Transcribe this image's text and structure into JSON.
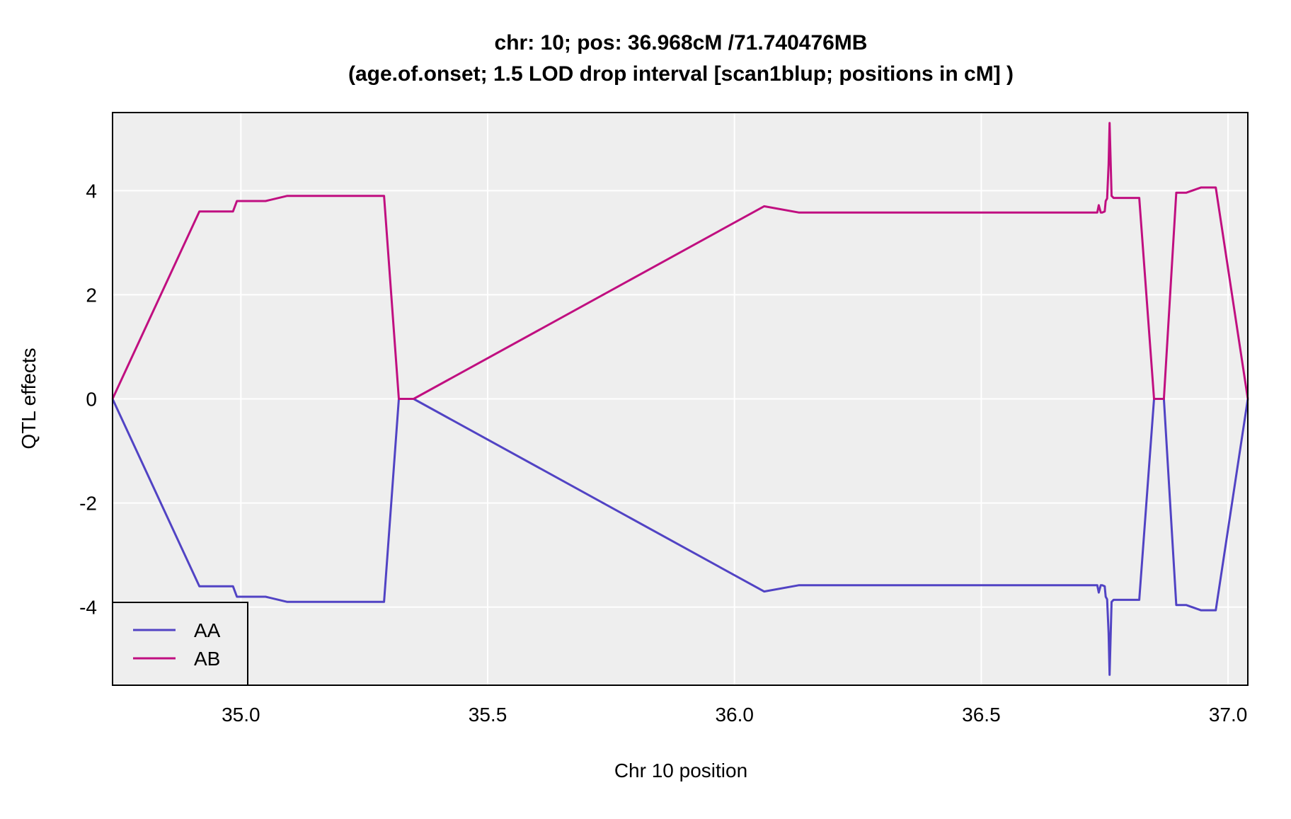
{
  "chart_data": {
    "type": "line",
    "title": "chr: 10; pos: 36.968cM /71.740476MB",
    "subtitle": "(age.of.onset; 1.5 LOD drop interval [scan1blup; positions in cM] )",
    "xlabel": "Chr 10 position",
    "ylabel": "QTL effects",
    "xlim": [
      34.74,
      37.04
    ],
    "ylim": [
      -5.5,
      5.5
    ],
    "x_ticks": [
      "35.0",
      "35.5",
      "36.0",
      "36.5",
      "37.0"
    ],
    "y_ticks": [
      "-4",
      "-2",
      "0",
      "2",
      "4"
    ],
    "grid": true,
    "legend_position": "bottom-left",
    "series": [
      {
        "name": "AA",
        "color": "#5143c4",
        "x": [
          34.74,
          34.916,
          34.984,
          34.992,
          35.05,
          35.094,
          35.29,
          35.32,
          35.35,
          36.06,
          36.13,
          36.735,
          36.738,
          36.742,
          36.745,
          36.75,
          36.752,
          36.755,
          36.758,
          36.76,
          36.764,
          36.768,
          36.774,
          36.82,
          36.85,
          36.87,
          36.895,
          36.915,
          36.945,
          36.975,
          37.04
        ],
        "y": [
          0,
          -3.6,
          -3.6,
          -3.8,
          -3.8,
          -3.9,
          -3.9,
          0,
          0,
          -3.7,
          -3.58,
          -3.58,
          -3.72,
          -3.58,
          -3.58,
          -3.6,
          -3.8,
          -3.85,
          -4.5,
          -5.3,
          -3.9,
          -3.86,
          -3.86,
          -3.86,
          0,
          0,
          -3.96,
          -3.96,
          -4.06,
          -4.06,
          0
        ]
      },
      {
        "name": "AB",
        "color": "#c00f80",
        "x": [
          34.74,
          34.916,
          34.984,
          34.992,
          35.05,
          35.094,
          35.29,
          35.32,
          35.35,
          36.06,
          36.13,
          36.735,
          36.738,
          36.742,
          36.745,
          36.75,
          36.752,
          36.755,
          36.758,
          36.76,
          36.764,
          36.768,
          36.774,
          36.82,
          36.85,
          36.87,
          36.895,
          36.915,
          36.945,
          36.975,
          37.04
        ],
        "y": [
          0,
          3.6,
          3.6,
          3.8,
          3.8,
          3.9,
          3.9,
          0,
          0,
          3.7,
          3.58,
          3.58,
          3.72,
          3.58,
          3.58,
          3.6,
          3.8,
          3.85,
          4.5,
          5.3,
          3.9,
          3.86,
          3.86,
          3.86,
          0,
          0,
          3.96,
          3.96,
          4.06,
          4.06,
          0
        ]
      }
    ]
  },
  "colors": {
    "panel_background": "#eeeeee",
    "grid": "#ffffff",
    "frame": "#000000"
  }
}
